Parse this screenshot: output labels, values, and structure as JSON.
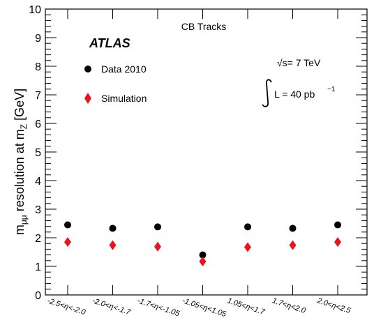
{
  "chart_data": {
    "type": "scatter",
    "title": "CB Tracks",
    "ylabel_main": "m",
    "ylabel_sub": "μμ",
    "ylabel_mid": " resolution at m",
    "ylabel_sub2": "Z",
    "ylabel_tail": " [GeV]",
    "ylim": [
      0,
      10
    ],
    "yticks": [
      "0",
      "1",
      "2",
      "3",
      "4",
      "5",
      "6",
      "7",
      "8",
      "9",
      "10"
    ],
    "categories": [
      "-2.5<η<-2.0",
      "-2.0<η<-1.7",
      "-1.7<η<-1.05",
      "-1.05<η<1.05",
      "1.05<η<1.7",
      "1.7<η<2.0",
      "2.0<η<2.5"
    ],
    "series": [
      {
        "name": "Data 2010",
        "marker": "circle",
        "color": "#000000",
        "values": [
          2.45,
          2.33,
          2.38,
          1.4,
          2.38,
          2.33,
          2.45
        ]
      },
      {
        "name": "Simulation",
        "marker": "diamond",
        "color": "#e8141b",
        "values": [
          1.85,
          1.74,
          1.69,
          1.17,
          1.67,
          1.74,
          1.85
        ]
      }
    ],
    "experiment": "ATLAS",
    "energy": "√s= 7 TeV",
    "lumi_prefix": "L = 40 pb",
    "lumi_exp": "−1",
    "grid": false,
    "legend_position": "top-left"
  }
}
